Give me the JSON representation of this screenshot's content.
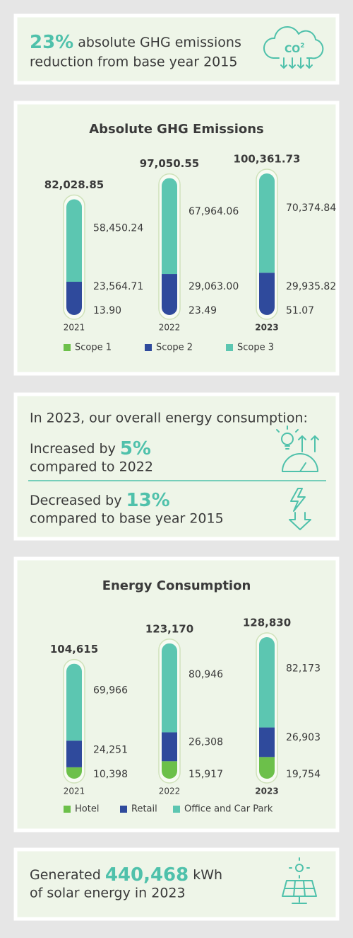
{
  "header": {
    "highlight": "23%",
    "line1": "absolute GHG emissions",
    "line2": "reduction from base year 2015",
    "icon_text": [
      "CO",
      "2"
    ]
  },
  "chart_data": [
    {
      "type": "bar",
      "stacked": true,
      "title": "Absolute GHG Emissions",
      "categories": [
        "2021",
        "2022",
        "2023"
      ],
      "series": [
        {
          "name": "Scope 1",
          "color": "#6cc04a",
          "values": [
            13.9,
            23.49,
            51.07
          ],
          "value_labels": [
            "13.90",
            "23.49",
            "51.07"
          ]
        },
        {
          "name": "Scope 2",
          "color": "#2f4a9c",
          "values": [
            23564.71,
            29063.0,
            29935.82
          ],
          "value_labels": [
            "23,564.71",
            "29,063.00",
            "29,935.82"
          ]
        },
        {
          "name": "Scope 3",
          "color": "#5cc6b1",
          "values": [
            58450.24,
            67964.06,
            70374.84
          ],
          "value_labels": [
            "58,450.24",
            "67,964.06",
            "70,374.84"
          ]
        }
      ],
      "totals": {
        "values": [
          82028.85,
          97050.55,
          100361.73
        ],
        "value_labels": [
          "82,028.85",
          "97,050.55",
          "100,361.73"
        ]
      }
    },
    {
      "type": "bar",
      "stacked": true,
      "title": "Energy Consumption",
      "categories": [
        "2021",
        "2022",
        "2023"
      ],
      "series": [
        {
          "name": "Hotel",
          "color": "#6cc04a",
          "values": [
            10398,
            15917,
            19754
          ],
          "value_labels": [
            "10,398",
            "15,917",
            "19,754"
          ]
        },
        {
          "name": "Retail",
          "color": "#2f4a9c",
          "values": [
            24251,
            26308,
            26903
          ],
          "value_labels": [
            "24,251",
            "26,308",
            "26,903"
          ]
        },
        {
          "name": "Office and Car Park",
          "color": "#5cc6b1",
          "values": [
            69966,
            80946,
            82173
          ],
          "value_labels": [
            "69,966",
            "80,946",
            "82,173"
          ]
        }
      ],
      "totals": {
        "values": [
          104615,
          123170,
          128830
        ],
        "value_labels": [
          "104,615",
          "123,170",
          "128,830"
        ]
      }
    }
  ],
  "energy_summary": {
    "intro": "In 2023, our overall energy consumption:",
    "increase": {
      "prefix": "Increased by",
      "value": "5%",
      "suffix": "compared to 2022"
    },
    "decrease": {
      "prefix": "Decreased by",
      "value": "13%",
      "suffix": "compared to base year 2015"
    }
  },
  "solar": {
    "prefix": "Generated",
    "value": "440,468",
    "unit": "kWh",
    "line2": "of solar energy in 2023"
  }
}
